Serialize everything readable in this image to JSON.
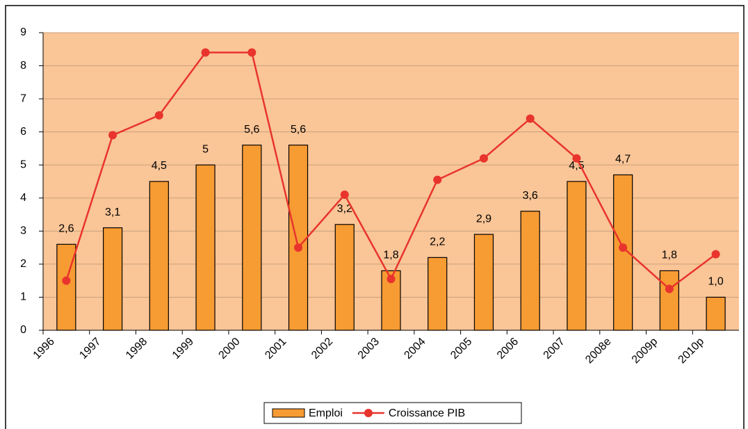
{
  "chart_data": {
    "type": "bar",
    "categories": [
      "1996",
      "1997",
      "1998",
      "1999",
      "2000",
      "2001",
      "2002",
      "2003",
      "2004",
      "2005",
      "2006",
      "2007",
      "2008e",
      "2009p",
      "2010p"
    ],
    "series": [
      {
        "name": "Emploi",
        "type": "bar",
        "color": "#f79b33",
        "values": [
          2.6,
          3.1,
          4.5,
          5,
          5.6,
          5.6,
          3.2,
          1.8,
          2.2,
          2.9,
          3.6,
          4.5,
          4.7,
          1.8,
          1.0
        ],
        "value_labels": [
          "2,6",
          "3,1",
          "4,5",
          "5",
          "5,6",
          "5,6",
          "3,2",
          "1,8",
          "2,2",
          "2,9",
          "3,6",
          "4,5",
          "4,7",
          "1,8",
          "1,0"
        ]
      },
      {
        "name": "Croissance PIB",
        "type": "line",
        "color": "#e8342c",
        "values": [
          1.5,
          5.9,
          6.5,
          8.4,
          8.4,
          2.5,
          4.1,
          1.55,
          4.55,
          5.2,
          6.4,
          5.2,
          2.5,
          1.25,
          2.3
        ]
      }
    ],
    "ylim": [
      0,
      9
    ],
    "yticks": [
      0,
      1,
      2,
      3,
      4,
      5,
      6,
      7,
      8,
      9
    ],
    "grid": true,
    "legend": "bottom"
  }
}
